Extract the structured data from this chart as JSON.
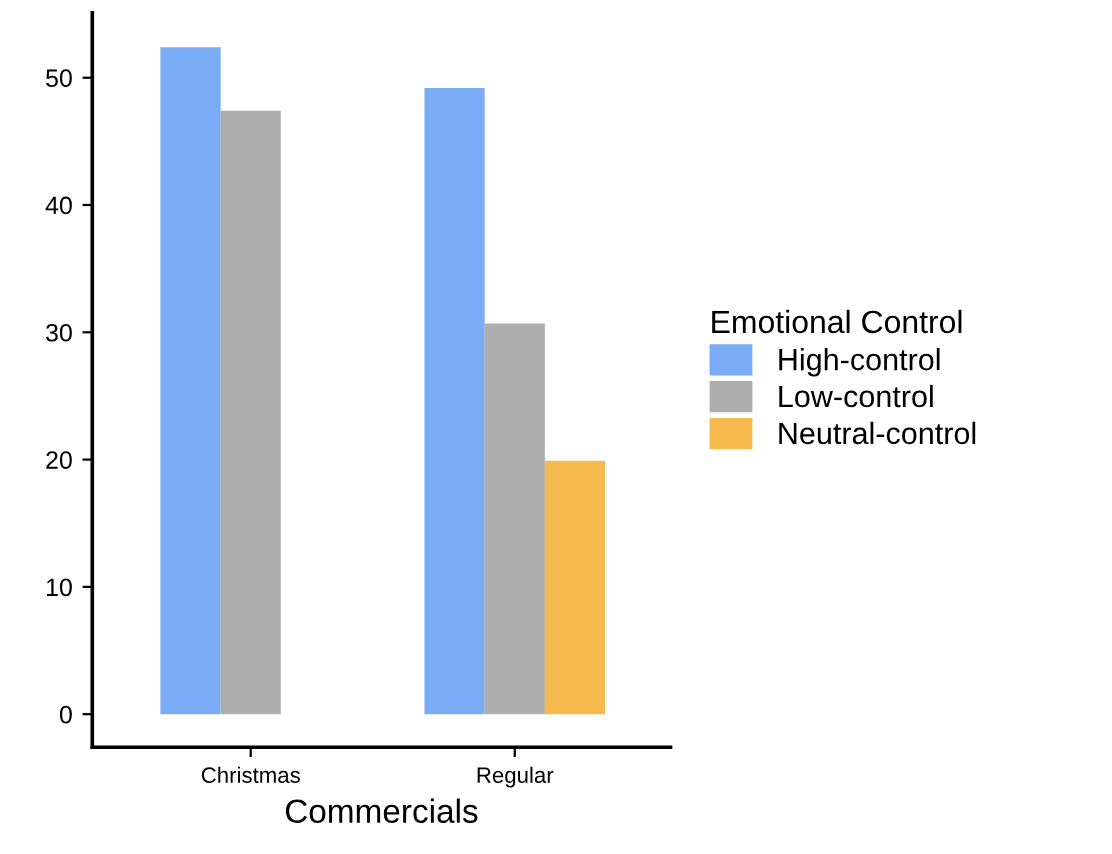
{
  "chart_data": {
    "type": "bar",
    "xlabel": "Commercials",
    "legend_title": "Emotional Control",
    "legend": "right",
    "categories": [
      "Christmas",
      "Regular"
    ],
    "series": [
      {
        "name": "High-control",
        "color": "#7aabf5",
        "values": [
          52.4,
          49.2
        ]
      },
      {
        "name": "Low-control",
        "color": "#adadad",
        "values": [
          47.4,
          30.7
        ]
      },
      {
        "name": "Neutral-control",
        "color": "#f5b94e",
        "values": [
          null,
          19.9
        ]
      }
    ],
    "ylim": [
      -2.6,
      55.1
    ],
    "yticks": [
      0,
      10,
      20,
      30,
      40,
      50
    ],
    "grid": false
  }
}
